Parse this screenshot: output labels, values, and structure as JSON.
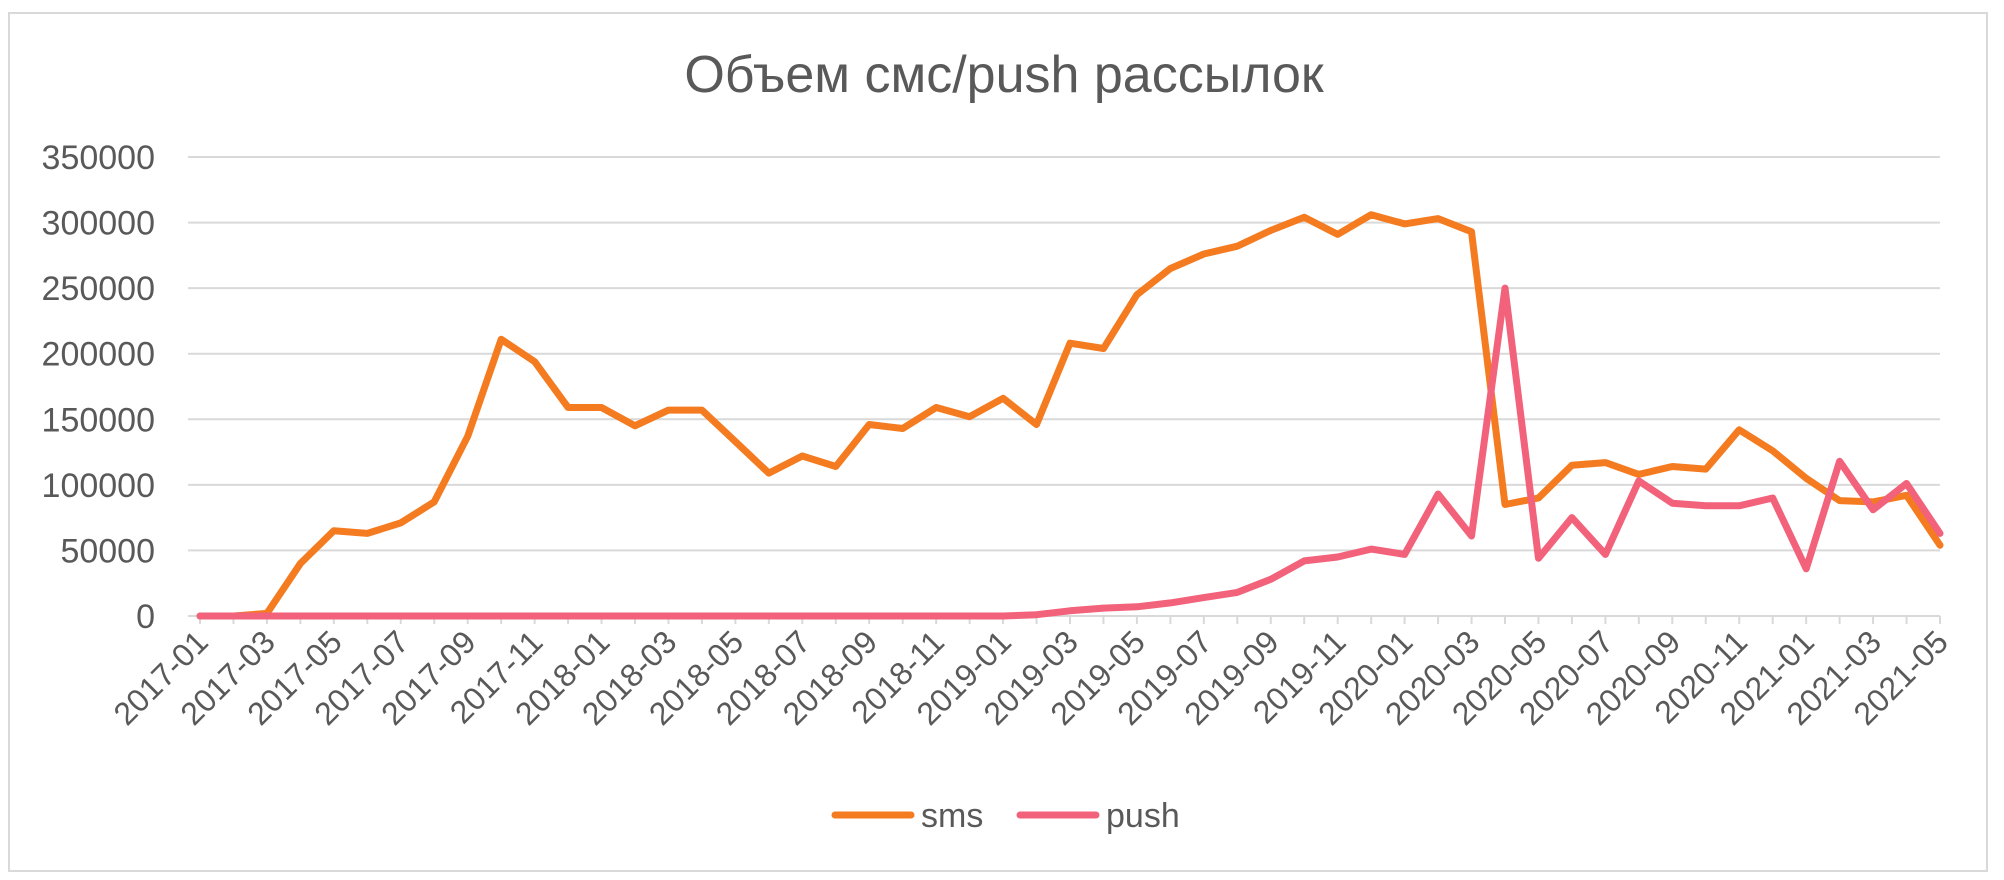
{
  "chart_data": {
    "type": "line",
    "title": "Объем смс/push рассылок",
    "xlabel": "",
    "ylabel": "",
    "ylim": [
      0,
      350000
    ],
    "y_ticks": [
      0,
      50000,
      100000,
      150000,
      200000,
      250000,
      300000,
      350000
    ],
    "y_tick_labels": [
      "0",
      "50000",
      "100000",
      "150000",
      "200000",
      "250000",
      "300000",
      "350000"
    ],
    "x_tick_labels": [
      "2017-01",
      "2017-03",
      "2017-05",
      "2017-07",
      "2017-09",
      "2017-11",
      "2018-01",
      "2018-03",
      "2018-05",
      "2018-07",
      "2018-09",
      "2018-11",
      "2019-01",
      "2019-03",
      "2019-05",
      "2019-07",
      "2019-09",
      "2019-11",
      "2020-01",
      "2020-03",
      "2020-05",
      "2020-07",
      "2020-09",
      "2020-11",
      "2021-01",
      "2021-03",
      "2021-05"
    ],
    "x": [
      "2017-01",
      "2017-02",
      "2017-03",
      "2017-04",
      "2017-05",
      "2017-06",
      "2017-07",
      "2017-08",
      "2017-09",
      "2017-10",
      "2017-11",
      "2017-12",
      "2018-01",
      "2018-02",
      "2018-03",
      "2018-04",
      "2018-05",
      "2018-06",
      "2018-07",
      "2018-08",
      "2018-09",
      "2018-10",
      "2018-11",
      "2018-12",
      "2019-01",
      "2019-02",
      "2019-03",
      "2019-04",
      "2019-05",
      "2019-06",
      "2019-07",
      "2019-08",
      "2019-09",
      "2019-10",
      "2019-11",
      "2019-12",
      "2020-01",
      "2020-02",
      "2020-03",
      "2020-04",
      "2020-05",
      "2020-06",
      "2020-07",
      "2020-08",
      "2020-09",
      "2020-10",
      "2020-11",
      "2020-12",
      "2021-01",
      "2021-02",
      "2021-03",
      "2021-04",
      "2021-05"
    ],
    "grid": true,
    "legend_position": "bottom",
    "series": [
      {
        "name": "sms",
        "color": "#f47b20",
        "values": [
          0,
          0,
          2000,
          40000,
          65000,
          63000,
          71000,
          87000,
          137000,
          211000,
          194000,
          159000,
          159000,
          145000,
          157000,
          157000,
          133000,
          109000,
          122000,
          114000,
          146000,
          143000,
          159000,
          152000,
          166000,
          146000,
          208000,
          204000,
          245000,
          265000,
          276000,
          282000,
          294000,
          304000,
          291000,
          306000,
          299000,
          303000,
          293000,
          85000,
          90000,
          115000,
          117000,
          108000,
          114000,
          112000,
          142000,
          126000,
          105000,
          88000,
          87000,
          92000,
          54000
        ]
      },
      {
        "name": "push",
        "color": "#f2627a",
        "values": [
          0,
          0,
          0,
          0,
          0,
          0,
          0,
          0,
          0,
          0,
          0,
          0,
          0,
          0,
          0,
          0,
          0,
          0,
          0,
          0,
          0,
          0,
          0,
          0,
          0,
          1000,
          4000,
          6000,
          7000,
          10000,
          14000,
          18000,
          28000,
          42000,
          45000,
          51000,
          47000,
          93000,
          61000,
          250000,
          44000,
          75000,
          47000,
          103000,
          86000,
          84000,
          84000,
          90000,
          36000,
          118000,
          81000,
          101000,
          63000
        ]
      }
    ]
  }
}
